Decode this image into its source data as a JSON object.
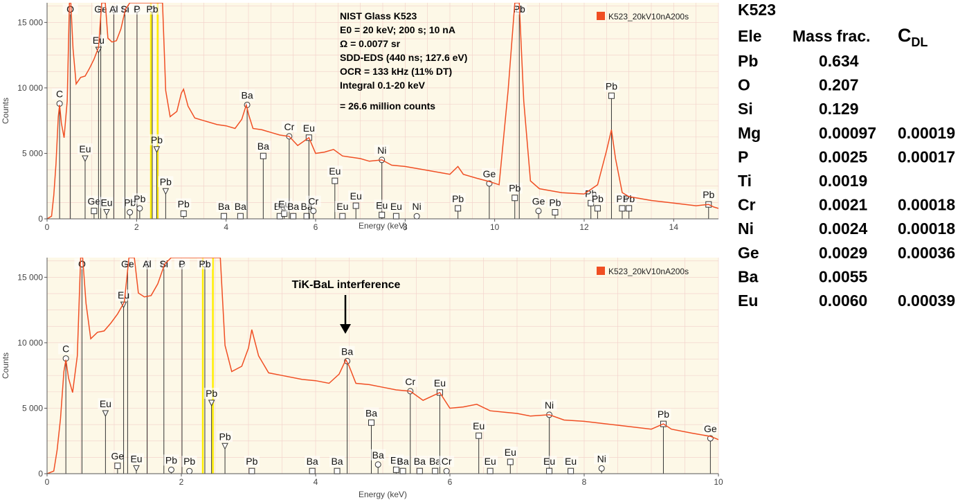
{
  "colors": {
    "spectrum": "#f04e23",
    "plot_bg": "#fdf8e7",
    "grid": "#f3d3cc",
    "marker_line": "#333333",
    "highlight": "#ffee00"
  },
  "chart_data": [
    {
      "type": "line",
      "title": "",
      "xlabel": "Energy (keV)",
      "ylabel": "Counts",
      "xlim": [
        0,
        15
      ],
      "ylim": [
        0,
        16500
      ],
      "xticks": [
        0,
        2,
        4,
        6,
        8,
        10,
        12,
        14
      ],
      "xtick_labels": [
        "0",
        "2",
        "4",
        "6",
        "8",
        "10",
        "12",
        "14"
      ],
      "yticks": [
        0,
        5000,
        10000,
        15000
      ],
      "ytick_labels": [
        "0",
        "5 000",
        "10 000",
        "15 000"
      ],
      "legend": "K523_20kV10nA200s",
      "info_text": [
        "NIST Glass K523",
        "E0 = 20 keV; 200 s; 10 nA",
        "Ω = 0.0077 sr",
        "SDD-EDS (440 ns; 127.6 eV)",
        "OCR = 133 kHz (11% DT)",
        "Integral 0.1-20 keV",
        "= 26.6 million counts"
      ],
      "series": [
        {
          "name": "K523_20kV10nA200s",
          "x": [
            0.0,
            0.1,
            0.15,
            0.2,
            0.25,
            0.28,
            0.32,
            0.38,
            0.45,
            0.5,
            0.53,
            0.58,
            0.65,
            0.75,
            0.85,
            0.95,
            1.05,
            1.15,
            1.22,
            1.26,
            1.3,
            1.36,
            1.45,
            1.55,
            1.65,
            1.75,
            1.85,
            1.95,
            2.05,
            2.15,
            2.3,
            2.4,
            2.5,
            2.58,
            2.65,
            2.75,
            2.9,
            3.0,
            3.05,
            3.15,
            3.3,
            3.5,
            3.8,
            4.0,
            4.2,
            4.35,
            4.45,
            4.5,
            4.6,
            4.8,
            5.0,
            5.2,
            5.41,
            5.6,
            5.85,
            6.0,
            6.2,
            6.4,
            6.6,
            6.8,
            7.0,
            7.2,
            7.48,
            7.7,
            8.0,
            8.5,
            9.0,
            9.18,
            9.3,
            9.6,
            9.88,
            10.1,
            10.3,
            10.45,
            10.55,
            10.65,
            10.8,
            11.0,
            11.5,
            12.0,
            12.3,
            12.5,
            12.61,
            12.7,
            12.85,
            13.0,
            13.5,
            14.0,
            14.5,
            14.78,
            14.9,
            15.0
          ],
          "y": [
            0,
            200,
            1800,
            4200,
            7800,
            8700,
            7300,
            6200,
            9000,
            16500,
            16500,
            13000,
            10300,
            10800,
            10900,
            11500,
            12200,
            13100,
            16500,
            16500,
            16500,
            13800,
            13500,
            13600,
            14500,
            16000,
            16500,
            16500,
            16500,
            16500,
            16500,
            16500,
            16500,
            16500,
            9800,
            7800,
            8200,
            9600,
            9900,
            8600,
            7700,
            7500,
            7200,
            7100,
            6900,
            7600,
            8700,
            8000,
            6900,
            6800,
            6600,
            6400,
            6300,
            5600,
            6200,
            5000,
            5100,
            5300,
            4800,
            4700,
            4600,
            4400,
            4500,
            4100,
            4000,
            3700,
            3400,
            4000,
            3400,
            3100,
            2850,
            2600,
            9800,
            16500,
            16500,
            9000,
            2900,
            2300,
            2000,
            1900,
            2600,
            5200,
            6800,
            4600,
            2000,
            1700,
            1400,
            1200,
            1000,
            1100,
            900,
            800
          ]
        }
      ],
      "markers": [
        {
          "label": "C",
          "x": 0.28,
          "y": 8800,
          "sym": "o"
        },
        {
          "label": "O",
          "x": 0.52,
          "y": 16000,
          "sym": "o"
        },
        {
          "label": "Eu",
          "x": 0.85,
          "y": 4600,
          "sym": "v"
        },
        {
          "label": "Ge",
          "x": 1.05,
          "y": 600,
          "sym": "s"
        },
        {
          "label": "Ge",
          "x": 1.2,
          "y": 16000,
          "sym": "o"
        },
        {
          "label": "Eu",
          "x": 1.15,
          "y": 12900,
          "sym": "v"
        },
        {
          "label": "Eu",
          "x": 1.33,
          "y": 500,
          "sym": "v"
        },
        {
          "label": "Al",
          "x": 1.49,
          "y": 16000,
          "sym": "o"
        },
        {
          "label": "Pb",
          "x": 1.85,
          "y": 500,
          "sym": "o"
        },
        {
          "label": "Si",
          "x": 1.74,
          "y": 16000,
          "sym": "o"
        },
        {
          "label": "P",
          "x": 2.01,
          "y": 16000,
          "sym": "o"
        },
        {
          "label": "Pb",
          "x": 2.07,
          "y": 800,
          "sym": "o"
        },
        {
          "label": "Pb",
          "x": 2.35,
          "y": 16000,
          "sym": "o"
        },
        {
          "label": "Pb",
          "x": 2.45,
          "y": 5300,
          "sym": "v"
        },
        {
          "label": "Pb",
          "x": 2.65,
          "y": 2100,
          "sym": "v"
        },
        {
          "label": "Pb",
          "x": 3.05,
          "y": 400,
          "sym": "s"
        },
        {
          "label": "Ba",
          "x": 3.95,
          "y": 200,
          "sym": "s"
        },
        {
          "label": "Ba",
          "x": 4.32,
          "y": 200,
          "sym": "s"
        },
        {
          "label": "Ba",
          "x": 4.47,
          "y": 8700,
          "sym": "o"
        },
        {
          "label": "Ba",
          "x": 4.83,
          "y": 4800,
          "sym": "s"
        },
        {
          "label": "Ba",
          "x": 5.2,
          "y": 200,
          "sym": "s"
        },
        {
          "label": "Eu",
          "x": 5.3,
          "y": 400,
          "sym": "s"
        },
        {
          "label": "Cr",
          "x": 5.41,
          "y": 6300,
          "sym": "o"
        },
        {
          "label": "Ba",
          "x": 5.5,
          "y": 200,
          "sym": "s"
        },
        {
          "label": "Ba",
          "x": 5.8,
          "y": 200,
          "sym": "s"
        },
        {
          "label": "Eu",
          "x": 5.85,
          "y": 6200,
          "sym": "s"
        },
        {
          "label": "Cr",
          "x": 5.95,
          "y": 600,
          "sym": "o"
        },
        {
          "label": "Eu",
          "x": 6.43,
          "y": 2900,
          "sym": "s"
        },
        {
          "label": "Eu",
          "x": 6.6,
          "y": 200,
          "sym": "s"
        },
        {
          "label": "Eu",
          "x": 6.9,
          "y": 1000,
          "sym": "s"
        },
        {
          "label": "Ni",
          "x": 7.48,
          "y": 4500,
          "sym": "o"
        },
        {
          "label": "Eu",
          "x": 7.48,
          "y": 300,
          "sym": "s"
        },
        {
          "label": "Eu",
          "x": 7.8,
          "y": 200,
          "sym": "s"
        },
        {
          "label": "Ni",
          "x": 8.26,
          "y": 200,
          "sym": "o"
        },
        {
          "label": "Pb",
          "x": 9.18,
          "y": 800,
          "sym": "s"
        },
        {
          "label": "Ge",
          "x": 9.88,
          "y": 2700,
          "sym": "o"
        },
        {
          "label": "Pb",
          "x": 10.45,
          "y": 1600,
          "sym": "s"
        },
        {
          "label": "Pb",
          "x": 10.55,
          "y": 16000,
          "sym": "s"
        },
        {
          "label": "Ge",
          "x": 10.98,
          "y": 600,
          "sym": "o"
        },
        {
          "label": "Pb",
          "x": 11.35,
          "y": 500,
          "sym": "s"
        },
        {
          "label": "Pb",
          "x": 12.15,
          "y": 1200,
          "sym": "s"
        },
        {
          "label": "Pb",
          "x": 12.3,
          "y": 800,
          "sym": "s"
        },
        {
          "label": "Pb",
          "x": 12.61,
          "y": 9400,
          "sym": "s"
        },
        {
          "label": "Pb",
          "x": 12.85,
          "y": 800,
          "sym": "s"
        },
        {
          "label": "Pb",
          "x": 13.0,
          "y": 800,
          "sym": "s"
        },
        {
          "label": "Pb",
          "x": 14.78,
          "y": 1100,
          "sym": "s"
        }
      ]
    },
    {
      "type": "line",
      "title": "",
      "xlabel": "Energy (keV)",
      "ylabel": "Counts",
      "xlim": [
        0,
        10
      ],
      "ylim": [
        0,
        16500
      ],
      "xticks": [
        0,
        2,
        4,
        6,
        8,
        10
      ],
      "xtick_labels": [
        "0",
        "2",
        "4",
        "6",
        "8",
        "10"
      ],
      "yticks": [
        0,
        5000,
        10000,
        15000
      ],
      "ytick_labels": [
        "0",
        "5 000",
        "10 000",
        "15 000"
      ],
      "legend": "K523_20kV10nA200s",
      "annotation": "TiK-BaL interference",
      "series": [
        {
          "name": "K523_20kV10nA200s",
          "x": [
            0.0,
            0.1,
            0.15,
            0.2,
            0.25,
            0.28,
            0.32,
            0.38,
            0.45,
            0.5,
            0.53,
            0.58,
            0.65,
            0.75,
            0.85,
            0.95,
            1.05,
            1.15,
            1.22,
            1.26,
            1.3,
            1.36,
            1.45,
            1.55,
            1.65,
            1.75,
            1.85,
            1.95,
            2.05,
            2.15,
            2.3,
            2.4,
            2.5,
            2.58,
            2.65,
            2.75,
            2.9,
            3.0,
            3.05,
            3.15,
            3.3,
            3.5,
            3.8,
            4.0,
            4.2,
            4.35,
            4.45,
            4.5,
            4.6,
            4.8,
            5.0,
            5.2,
            5.41,
            5.6,
            5.85,
            6.0,
            6.2,
            6.4,
            6.6,
            6.8,
            7.0,
            7.2,
            7.48,
            7.7,
            8.0,
            8.5,
            9.0,
            9.18,
            9.3,
            9.6,
            9.88,
            10.0
          ],
          "y": [
            0,
            200,
            1800,
            4200,
            7800,
            8700,
            7300,
            6200,
            9000,
            16500,
            16500,
            13000,
            10300,
            10800,
            10900,
            11500,
            12200,
            13100,
            16500,
            16500,
            16500,
            13800,
            13500,
            13600,
            14500,
            16000,
            16500,
            16500,
            16500,
            16500,
            16500,
            16500,
            16500,
            16500,
            9800,
            7800,
            8200,
            9600,
            11000,
            9000,
            7700,
            7500,
            7200,
            7100,
            6900,
            7600,
            8700,
            8200,
            6900,
            6800,
            6600,
            6400,
            6300,
            5600,
            6200,
            5000,
            5100,
            5300,
            4800,
            4700,
            4600,
            4400,
            4500,
            4100,
            4000,
            3700,
            3400,
            3800,
            3400,
            3100,
            2850,
            2600
          ]
        }
      ],
      "markers": [
        {
          "label": "C",
          "x": 0.28,
          "y": 8800,
          "sym": "o"
        },
        {
          "label": "O",
          "x": 0.52,
          "y": 16000,
          "sym": "o"
        },
        {
          "label": "Eu",
          "x": 0.87,
          "y": 4600,
          "sym": "v"
        },
        {
          "label": "Ge",
          "x": 1.05,
          "y": 600,
          "sym": "s"
        },
        {
          "label": "Ge",
          "x": 1.2,
          "y": 16000,
          "sym": "o"
        },
        {
          "label": "Eu",
          "x": 1.14,
          "y": 12900,
          "sym": "v"
        },
        {
          "label": "Eu",
          "x": 1.33,
          "y": 400,
          "sym": "v"
        },
        {
          "label": "Al",
          "x": 1.49,
          "y": 16000,
          "sym": "o"
        },
        {
          "label": "Si",
          "x": 1.74,
          "y": 16000,
          "sym": "o"
        },
        {
          "label": "Pb",
          "x": 1.85,
          "y": 300,
          "sym": "o"
        },
        {
          "label": "P",
          "x": 2.01,
          "y": 16000,
          "sym": "o"
        },
        {
          "label": "Pb",
          "x": 2.12,
          "y": 200,
          "sym": "o"
        },
        {
          "label": "Pb",
          "x": 2.35,
          "y": 16000,
          "sym": "o"
        },
        {
          "label": "Pb",
          "x": 2.45,
          "y": 5400,
          "sym": "v"
        },
        {
          "label": "Pb",
          "x": 2.65,
          "y": 2100,
          "sym": "v"
        },
        {
          "label": "Pb",
          "x": 3.05,
          "y": 200,
          "sym": "s"
        },
        {
          "label": "Ba",
          "x": 3.95,
          "y": 200,
          "sym": "s"
        },
        {
          "label": "Ba",
          "x": 4.32,
          "y": 200,
          "sym": "s"
        },
        {
          "label": "Ba",
          "x": 4.47,
          "y": 8600,
          "sym": "o"
        },
        {
          "label": "Ba",
          "x": 4.83,
          "y": 3900,
          "sym": "s"
        },
        {
          "label": "Ba",
          "x": 4.93,
          "y": 700,
          "sym": "o"
        },
        {
          "label": "Eu",
          "x": 5.2,
          "y": 300,
          "sym": "s"
        },
        {
          "label": "Ba",
          "x": 5.3,
          "y": 200,
          "sym": "s"
        },
        {
          "label": "Cr",
          "x": 5.41,
          "y": 6300,
          "sym": "o"
        },
        {
          "label": "Ba",
          "x": 5.55,
          "y": 200,
          "sym": "s"
        },
        {
          "label": "Ba",
          "x": 5.78,
          "y": 200,
          "sym": "s"
        },
        {
          "label": "Eu",
          "x": 5.85,
          "y": 6200,
          "sym": "s"
        },
        {
          "label": "Cr",
          "x": 5.95,
          "y": 200,
          "sym": "o"
        },
        {
          "label": "Eu",
          "x": 6.43,
          "y": 2900,
          "sym": "s"
        },
        {
          "label": "Eu",
          "x": 6.6,
          "y": 200,
          "sym": "s"
        },
        {
          "label": "Eu",
          "x": 6.9,
          "y": 900,
          "sym": "s"
        },
        {
          "label": "Ni",
          "x": 7.48,
          "y": 4500,
          "sym": "o"
        },
        {
          "label": "Eu",
          "x": 7.48,
          "y": 200,
          "sym": "s"
        },
        {
          "label": "Eu",
          "x": 7.8,
          "y": 200,
          "sym": "s"
        },
        {
          "label": "Ni",
          "x": 8.26,
          "y": 400,
          "sym": "o"
        },
        {
          "label": "Pb",
          "x": 9.18,
          "y": 3800,
          "sym": "s"
        },
        {
          "label": "Ge",
          "x": 9.88,
          "y": 2700,
          "sym": "o"
        }
      ]
    }
  ],
  "table": {
    "title": "K523",
    "header": [
      "Ele",
      "Mass frac.",
      "C",
      "DL"
    ],
    "rows": [
      [
        "Pb",
        "0.634",
        ""
      ],
      [
        "O",
        "0.207",
        ""
      ],
      [
        "Si",
        "0.129",
        ""
      ],
      [
        "Mg",
        "0.00097",
        "0.00019"
      ],
      [
        "P",
        "0.0025",
        "0.00017"
      ],
      [
        "Ti",
        "0.0019",
        ""
      ],
      [
        "Cr",
        "0.0021",
        "0.00018"
      ],
      [
        "Ni",
        "0.0024",
        "0.00018"
      ],
      [
        "Ge",
        "0.0029",
        "0.00036"
      ],
      [
        "Ba",
        "0.0055",
        ""
      ],
      [
        "Eu",
        "0.0060",
        "0.00039"
      ]
    ]
  }
}
